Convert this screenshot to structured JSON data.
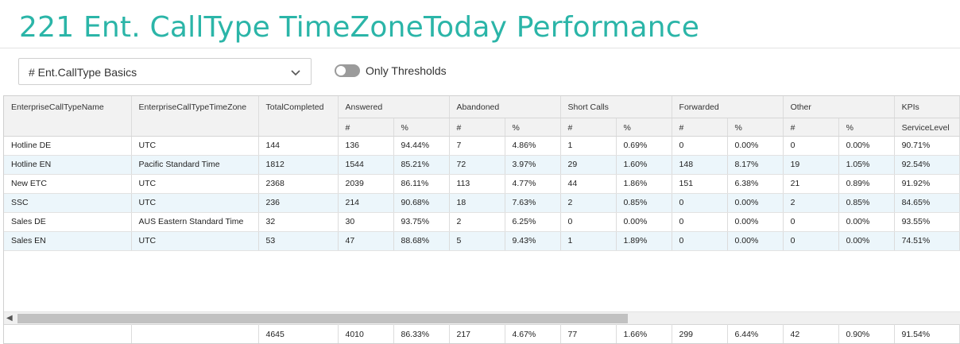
{
  "title": "221 Ent. CallType TimeZoneToday Performance",
  "dropdown": {
    "value": "# Ent.CallType Basics",
    "icon": "chevron-down-icon"
  },
  "toggle": {
    "label": "Only Thresholds",
    "on": false
  },
  "colors": {
    "title": "#2bb5a8",
    "row_alt": "#ecf6fb",
    "header_bg": "#f2f2f2"
  },
  "table": {
    "headers": {
      "name": "EnterpriseCallTypeName",
      "tz": "EnterpriseCallTypeTimeZone",
      "total": "TotalCompleted",
      "groups": [
        "Answered",
        "Abandoned",
        "Short Calls",
        "Forwarded",
        "Other",
        "KPIs"
      ],
      "count": "#",
      "pct": "%",
      "service_level": "ServiceLevel"
    },
    "rows": [
      [
        "Hotline DE",
        "UTC",
        "144",
        "136",
        "94.44%",
        "7",
        "4.86%",
        "1",
        "0.69%",
        "0",
        "0.00%",
        "0",
        "0.00%",
        "90.71%"
      ],
      [
        "Hotline EN",
        "Pacific Standard Time",
        "1812",
        "1544",
        "85.21%",
        "72",
        "3.97%",
        "29",
        "1.60%",
        "148",
        "8.17%",
        "19",
        "1.05%",
        "92.54%"
      ],
      [
        "New ETC",
        "UTC",
        "2368",
        "2039",
        "86.11%",
        "113",
        "4.77%",
        "44",
        "1.86%",
        "151",
        "6.38%",
        "21",
        "0.89%",
        "91.92%"
      ],
      [
        "SSC",
        "UTC",
        "236",
        "214",
        "90.68%",
        "18",
        "7.63%",
        "2",
        "0.85%",
        "0",
        "0.00%",
        "2",
        "0.85%",
        "84.65%"
      ],
      [
        "Sales DE",
        "AUS Eastern Standard Time",
        "32",
        "30",
        "93.75%",
        "2",
        "6.25%",
        "0",
        "0.00%",
        "0",
        "0.00%",
        "0",
        "0.00%",
        "93.55%"
      ],
      [
        "Sales EN",
        "UTC",
        "53",
        "47",
        "88.68%",
        "5",
        "9.43%",
        "1",
        "1.89%",
        "0",
        "0.00%",
        "0",
        "0.00%",
        "74.51%"
      ]
    ],
    "totals": [
      "",
      "",
      "4645",
      "4010",
      "86.33%",
      "217",
      "4.67%",
      "77",
      "1.66%",
      "299",
      "6.44%",
      "42",
      "0.90%",
      "91.54%"
    ]
  }
}
